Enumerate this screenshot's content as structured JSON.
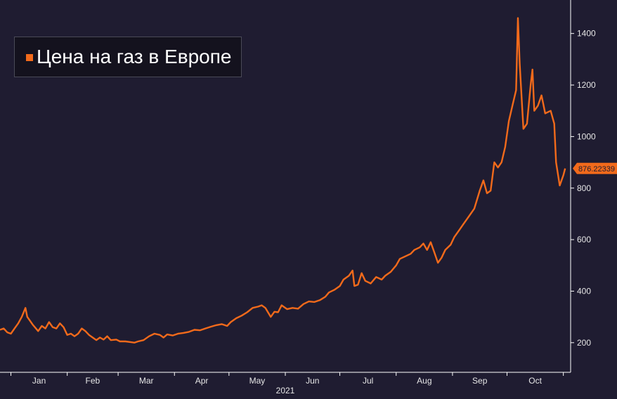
{
  "legend": {
    "label": "Цена на газ в Европе",
    "color": "#f26a1b"
  },
  "colors": {
    "background": "#1f1c31",
    "line": "#f26a1b",
    "axis": "#ffffff",
    "legend_bg": "#14121e"
  },
  "chart_data": {
    "type": "line",
    "title": "",
    "xlabel": "2021",
    "ylabel": "",
    "x_tick_labels": [
      "Jan",
      "Feb",
      "Mar",
      "Apr",
      "May",
      "Jun",
      "Jul",
      "Aug",
      "Sep",
      "Oct"
    ],
    "year_label": "2021",
    "y_ticks": [
      200,
      400,
      600,
      800,
      1000,
      1200,
      1400
    ],
    "ylim": [
      85,
      1530
    ],
    "xlim": [
      "2020-12-26",
      "2021-11-05"
    ],
    "last_value_label": "876.22339",
    "grid": false,
    "legend_position": "top-left",
    "series": [
      {
        "name": "Цена на газ в Европе",
        "color": "#f26a1b",
        "points": [
          [
            "2020-12-26",
            250
          ],
          [
            "2020-12-28",
            255
          ],
          [
            "2020-12-30",
            240
          ],
          [
            "2021-01-01",
            235
          ],
          [
            "2021-01-03",
            255
          ],
          [
            "2021-01-05",
            275
          ],
          [
            "2021-01-07",
            300
          ],
          [
            "2021-01-09",
            335
          ],
          [
            "2021-01-10",
            300
          ],
          [
            "2021-01-13",
            270
          ],
          [
            "2021-01-16",
            245
          ],
          [
            "2021-01-18",
            265
          ],
          [
            "2021-01-20",
            255
          ],
          [
            "2021-01-22",
            280
          ],
          [
            "2021-01-24",
            260
          ],
          [
            "2021-01-26",
            255
          ],
          [
            "2021-01-28",
            275
          ],
          [
            "2021-01-30",
            260
          ],
          [
            "2021-02-01",
            230
          ],
          [
            "2021-02-03",
            235
          ],
          [
            "2021-02-05",
            225
          ],
          [
            "2021-02-07",
            235
          ],
          [
            "2021-02-09",
            255
          ],
          [
            "2021-02-11",
            245
          ],
          [
            "2021-02-13",
            230
          ],
          [
            "2021-02-15",
            220
          ],
          [
            "2021-02-17",
            210
          ],
          [
            "2021-02-19",
            220
          ],
          [
            "2021-02-21",
            212
          ],
          [
            "2021-02-23",
            225
          ],
          [
            "2021-02-25",
            210
          ],
          [
            "2021-02-28",
            212
          ],
          [
            "2021-03-02",
            205
          ],
          [
            "2021-03-05",
            205
          ],
          [
            "2021-03-08",
            202
          ],
          [
            "2021-03-10",
            200
          ],
          [
            "2021-03-12",
            205
          ],
          [
            "2021-03-15",
            210
          ],
          [
            "2021-03-18",
            225
          ],
          [
            "2021-03-21",
            235
          ],
          [
            "2021-03-24",
            230
          ],
          [
            "2021-03-26",
            220
          ],
          [
            "2021-03-28",
            232
          ],
          [
            "2021-03-31",
            228
          ],
          [
            "2021-04-03",
            235
          ],
          [
            "2021-04-06",
            238
          ],
          [
            "2021-04-09",
            242
          ],
          [
            "2021-04-12",
            250
          ],
          [
            "2021-04-15",
            248
          ],
          [
            "2021-04-18",
            255
          ],
          [
            "2021-04-21",
            262
          ],
          [
            "2021-04-24",
            268
          ],
          [
            "2021-04-27",
            272
          ],
          [
            "2021-04-30",
            265
          ],
          [
            "2021-05-02",
            280
          ],
          [
            "2021-05-05",
            295
          ],
          [
            "2021-05-08",
            305
          ],
          [
            "2021-05-11",
            318
          ],
          [
            "2021-05-14",
            335
          ],
          [
            "2021-05-17",
            340
          ],
          [
            "2021-05-19",
            345
          ],
          [
            "2021-05-21",
            335
          ],
          [
            "2021-05-24",
            300
          ],
          [
            "2021-05-26",
            320
          ],
          [
            "2021-05-28",
            318
          ],
          [
            "2021-05-30",
            345
          ],
          [
            "2021-06-02",
            330
          ],
          [
            "2021-06-05",
            335
          ],
          [
            "2021-06-08",
            332
          ],
          [
            "2021-06-11",
            350
          ],
          [
            "2021-06-14",
            360
          ],
          [
            "2021-06-17",
            358
          ],
          [
            "2021-06-20",
            365
          ],
          [
            "2021-06-23",
            378
          ],
          [
            "2021-06-25",
            395
          ],
          [
            "2021-06-28",
            405
          ],
          [
            "2021-07-01",
            420
          ],
          [
            "2021-07-03",
            445
          ],
          [
            "2021-07-06",
            460
          ],
          [
            "2021-07-08",
            480
          ],
          [
            "2021-07-09",
            420
          ],
          [
            "2021-07-11",
            425
          ],
          [
            "2021-07-13",
            470
          ],
          [
            "2021-07-15",
            440
          ],
          [
            "2021-07-18",
            430
          ],
          [
            "2021-07-21",
            455
          ],
          [
            "2021-07-24",
            445
          ],
          [
            "2021-07-26",
            460
          ],
          [
            "2021-07-29",
            475
          ],
          [
            "2021-08-01",
            500
          ],
          [
            "2021-08-03",
            525
          ],
          [
            "2021-08-06",
            535
          ],
          [
            "2021-08-09",
            545
          ],
          [
            "2021-08-11",
            560
          ],
          [
            "2021-08-14",
            570
          ],
          [
            "2021-08-16",
            585
          ],
          [
            "2021-08-18",
            560
          ],
          [
            "2021-08-20",
            590
          ],
          [
            "2021-08-22",
            550
          ],
          [
            "2021-08-24",
            510
          ],
          [
            "2021-08-26",
            530
          ],
          [
            "2021-08-28",
            560
          ],
          [
            "2021-08-31",
            580
          ],
          [
            "2021-09-02",
            610
          ],
          [
            "2021-09-05",
            640
          ],
          [
            "2021-09-07",
            660
          ],
          [
            "2021-09-10",
            690
          ],
          [
            "2021-09-13",
            720
          ],
          [
            "2021-09-16",
            790
          ],
          [
            "2021-09-18",
            830
          ],
          [
            "2021-09-20",
            780
          ],
          [
            "2021-09-22",
            790
          ],
          [
            "2021-09-24",
            900
          ],
          [
            "2021-09-26",
            880
          ],
          [
            "2021-09-28",
            900
          ],
          [
            "2021-09-30",
            960
          ],
          [
            "2021-10-02",
            1060
          ],
          [
            "2021-10-04",
            1120
          ],
          [
            "2021-10-06",
            1180
          ],
          [
            "2021-10-07",
            1460
          ],
          [
            "2021-10-08",
            1280
          ],
          [
            "2021-10-10",
            1030
          ],
          [
            "2021-10-12",
            1050
          ],
          [
            "2021-10-14",
            1200
          ],
          [
            "2021-10-15",
            1260
          ],
          [
            "2021-10-16",
            1100
          ],
          [
            "2021-10-18",
            1120
          ],
          [
            "2021-10-20",
            1160
          ],
          [
            "2021-10-22",
            1090
          ],
          [
            "2021-10-25",
            1100
          ],
          [
            "2021-10-27",
            1050
          ],
          [
            "2021-10-28",
            900
          ],
          [
            "2021-10-30",
            810
          ],
          [
            "2021-11-01",
            850
          ],
          [
            "2021-11-02",
            876.22339
          ]
        ]
      }
    ]
  }
}
